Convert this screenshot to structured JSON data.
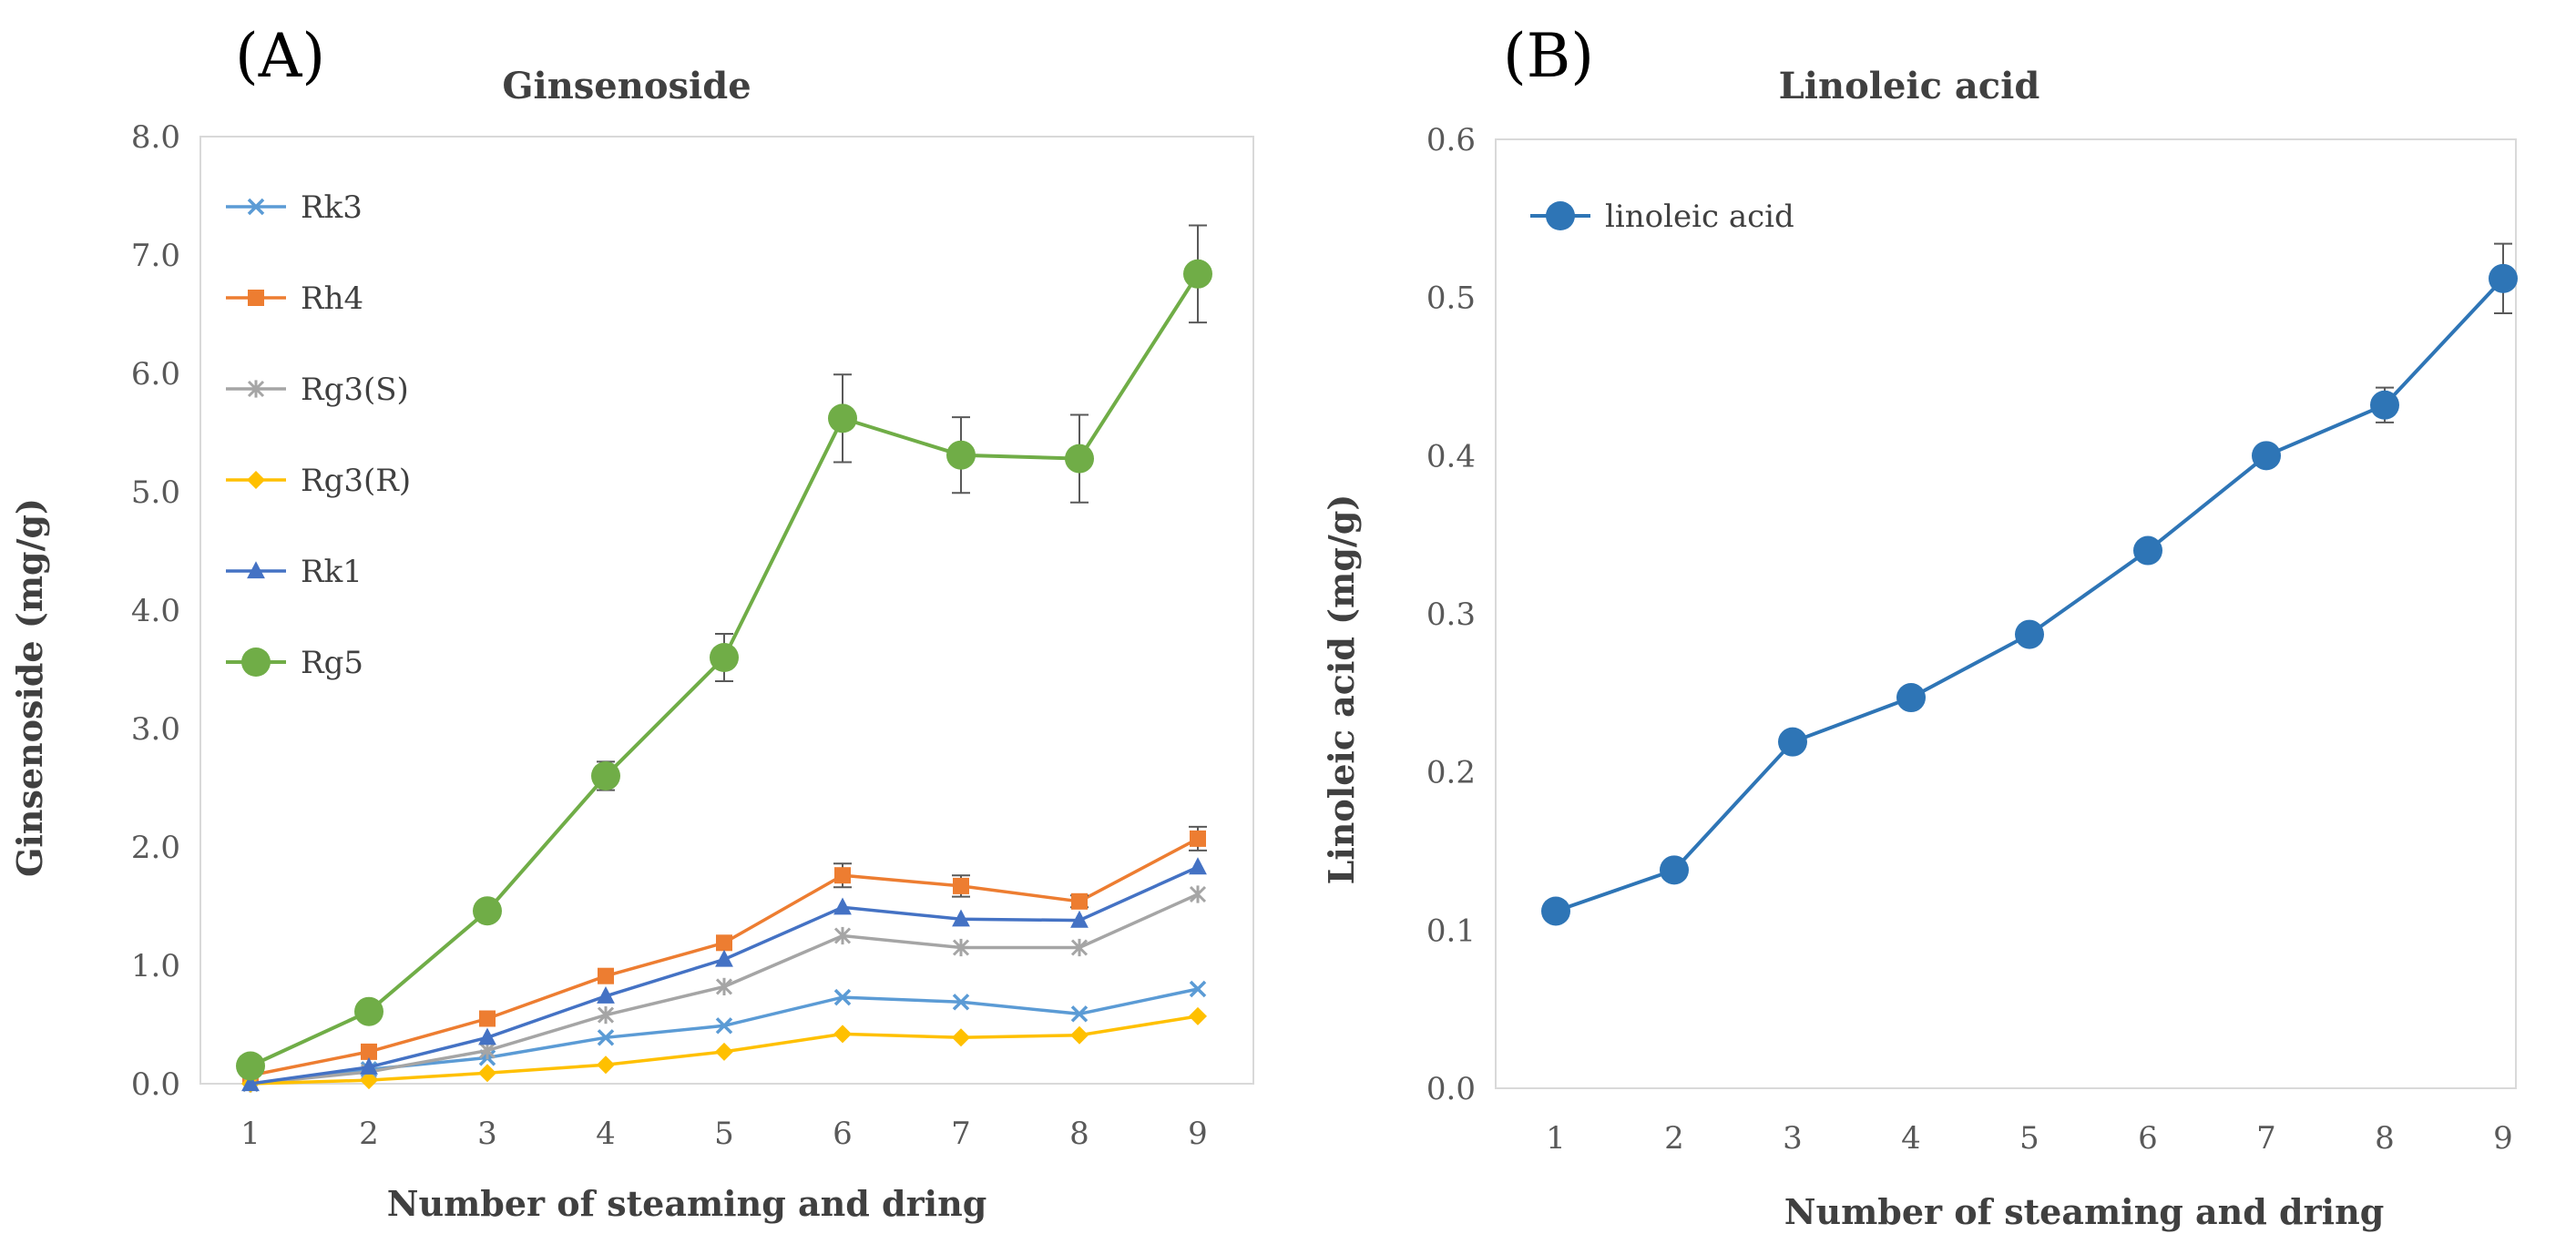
{
  "panels": {
    "a": {
      "label": "(A)",
      "title": "Ginsenoside",
      "ylabel": "Ginsenoside (mg/g)",
      "xlabel": "Number of steaming and dring"
    },
    "b": {
      "label": "(B)",
      "title": "Linoleic  acid",
      "ylabel": "Linoleic acid (mg/g)",
      "xlabel": "Number of steaming and dring"
    }
  },
  "chart_data": [
    {
      "type": "line",
      "title": "Ginsenoside",
      "xlabel": "Number of steaming and dring",
      "ylabel": "Ginsenoside (mg/g)",
      "x": [
        1,
        2,
        3,
        4,
        5,
        6,
        7,
        8,
        9
      ],
      "ylim": [
        0,
        8
      ],
      "yticks": [
        "0.0",
        "1.0",
        "2.0",
        "3.0",
        "4.0",
        "5.0",
        "6.0",
        "7.0",
        "8.0"
      ],
      "legend_position": "top-left inside",
      "series": [
        {
          "name": "Rk3",
          "color": "#5B9BD5",
          "marker": "x",
          "values": [
            0.0,
            0.12,
            0.22,
            0.39,
            0.49,
            0.73,
            0.69,
            0.59,
            0.8
          ],
          "errors": null
        },
        {
          "name": "Rh4",
          "color": "#ED7D31",
          "marker": "square",
          "values": [
            0.07,
            0.27,
            0.55,
            0.91,
            1.19,
            1.76,
            1.67,
            1.54,
            2.07
          ],
          "errors": [
            0,
            0,
            0,
            0,
            0,
            0.1,
            0.09,
            0.05,
            0.1
          ]
        },
        {
          "name": "Rg3(S)",
          "color": "#A5A5A5",
          "marker": "asterisk",
          "values": [
            0.0,
            0.1,
            0.28,
            0.58,
            0.82,
            1.25,
            1.15,
            1.15,
            1.6
          ],
          "errors": null
        },
        {
          "name": "Rg3(R)",
          "color": "#FFC000",
          "marker": "diamond",
          "values": [
            0.0,
            0.03,
            0.09,
            0.16,
            0.27,
            0.42,
            0.39,
            0.41,
            0.57
          ],
          "errors": null
        },
        {
          "name": "Rk1",
          "color": "#4472C4",
          "marker": "triangle",
          "values": [
            0.0,
            0.14,
            0.39,
            0.74,
            1.05,
            1.49,
            1.39,
            1.38,
            1.83
          ],
          "errors": null
        },
        {
          "name": "Rg5",
          "color": "#70AD47",
          "marker": "circle",
          "values": [
            0.15,
            0.61,
            1.46,
            2.6,
            3.6,
            5.62,
            5.31,
            5.28,
            6.84
          ],
          "errors": [
            0,
            0,
            0,
            0.12,
            0.2,
            0.37,
            0.32,
            0.37,
            0.41
          ]
        }
      ]
    },
    {
      "type": "line",
      "title": "Linoleic  acid",
      "xlabel": "Number of steaming and dring",
      "ylabel": "Linoleic acid (mg/g)",
      "x": [
        1,
        2,
        3,
        4,
        5,
        6,
        7,
        8,
        9
      ],
      "ylim": [
        0,
        0.6
      ],
      "yticks": [
        "0.0",
        "0.1",
        "0.2",
        "0.3",
        "0.4",
        "0.5",
        "0.6"
      ],
      "legend_position": "top-left inside",
      "series": [
        {
          "name": "linoleic acid",
          "color": "#2E75B6",
          "marker": "circle",
          "values": [
            0.112,
            0.138,
            0.219,
            0.247,
            0.287,
            0.34,
            0.4,
            0.432,
            0.512
          ],
          "errors": [
            0,
            0,
            0,
            0,
            0,
            0,
            0,
            0.011,
            0.022
          ]
        }
      ]
    }
  ]
}
